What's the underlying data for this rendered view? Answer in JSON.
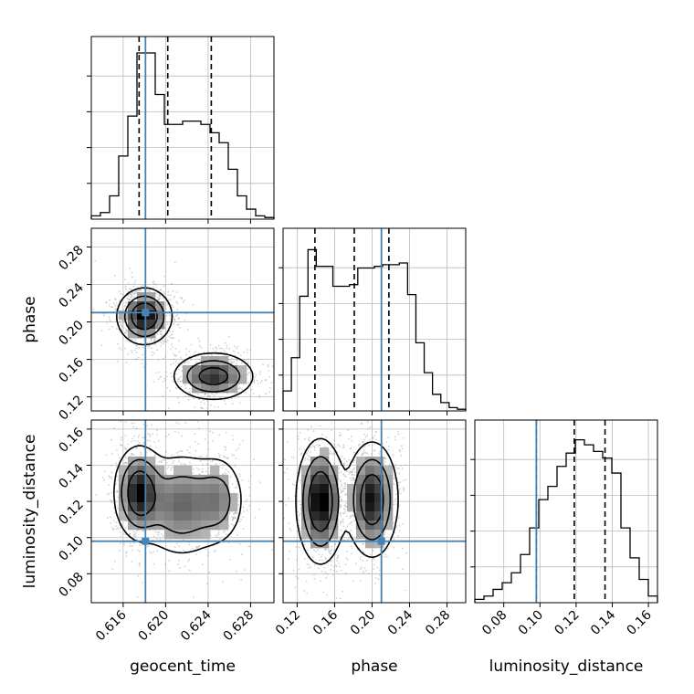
{
  "chart_data": {
    "type": "corner",
    "parameters": [
      "geocent_time",
      "phase",
      "luminosity_distance"
    ],
    "axis_labels": {
      "geocent_time": "geocent_time",
      "phase": "phase",
      "luminosity_distance": "luminosity_distance"
    },
    "ranges": {
      "geocent_time": [
        0.613,
        0.6302
      ],
      "phase": [
        0.105,
        0.3
      ],
      "luminosity_distance": [
        0.064,
        0.165
      ]
    },
    "ticks": {
      "geocent_time": [
        "0.616",
        "0.620",
        "0.624",
        "0.628"
      ],
      "phase": [
        "0.12",
        "0.16",
        "0.20",
        "0.24",
        "0.28"
      ],
      "luminosity_distance": [
        "0.08",
        "0.10",
        "0.12",
        "0.14",
        "0.16"
      ]
    },
    "truths": {
      "geocent_time": 0.6181,
      "phase": 0.21,
      "luminosity_distance": 0.098
    },
    "quantiles": {
      "geocent_time": [
        0.6175,
        0.6202,
        0.6243
      ],
      "phase": [
        0.139,
        0.181,
        0.218
      ],
      "luminosity_distance": [
        0.098,
        0.119,
        0.136
      ]
    },
    "histograms": {
      "geocent_time": [
        0.02,
        0.04,
        0.14,
        0.38,
        0.62,
        1.0,
        1.0,
        0.75,
        0.57,
        0.57,
        0.59,
        0.59,
        0.57,
        0.52,
        0.46,
        0.3,
        0.14,
        0.06,
        0.02,
        0.01
      ],
      "phase": [
        0.12,
        0.32,
        0.69,
        0.97,
        0.87,
        0.87,
        0.75,
        0.75,
        0.76,
        0.86,
        0.86,
        0.87,
        0.88,
        0.88,
        0.89,
        0.7,
        0.41,
        0.23,
        0.1,
        0.05,
        0.02,
        0.01
      ],
      "luminosity_distance": [
        0.02,
        0.04,
        0.08,
        0.12,
        0.18,
        0.29,
        0.45,
        0.62,
        0.7,
        0.82,
        0.9,
        0.98,
        0.95,
        0.91,
        0.87,
        0.78,
        0.45,
        0.27,
        0.14,
        0.04
      ]
    },
    "density_modes": {
      "geocent_time_phase": [
        {
          "x": 0.618,
          "y": 0.206,
          "sx": 0.0012,
          "sy": 0.014,
          "w": 1.0
        },
        {
          "x": 0.6245,
          "y": 0.142,
          "sx": 0.0018,
          "sy": 0.012,
          "w": 0.8
        }
      ],
      "geocent_time_luminosity_distance": [
        {
          "x": 0.6175,
          "y": 0.125,
          "sx": 0.0011,
          "sy": 0.012,
          "w": 1.0
        },
        {
          "x": 0.6215,
          "y": 0.118,
          "sx": 0.002,
          "sy": 0.014,
          "w": 0.62
        },
        {
          "x": 0.625,
          "y": 0.121,
          "sx": 0.0012,
          "sy": 0.012,
          "w": 0.42
        }
      ],
      "phase_luminosity_distance": [
        {
          "x": 0.145,
          "y": 0.12,
          "sx": 0.012,
          "sy": 0.016,
          "w": 1.0
        },
        {
          "x": 0.2,
          "y": 0.121,
          "sx": 0.013,
          "sy": 0.015,
          "w": 0.9
        }
      ]
    },
    "contour_levels": [
      0.1,
      0.32,
      0.62
    ],
    "colors": {
      "truth": "#4682b4",
      "histogram": "#000000",
      "contour": "#000000",
      "quantile": "#000000",
      "grid": "#bbbbbb",
      "points": "#9a9a9a"
    },
    "grid": true
  }
}
